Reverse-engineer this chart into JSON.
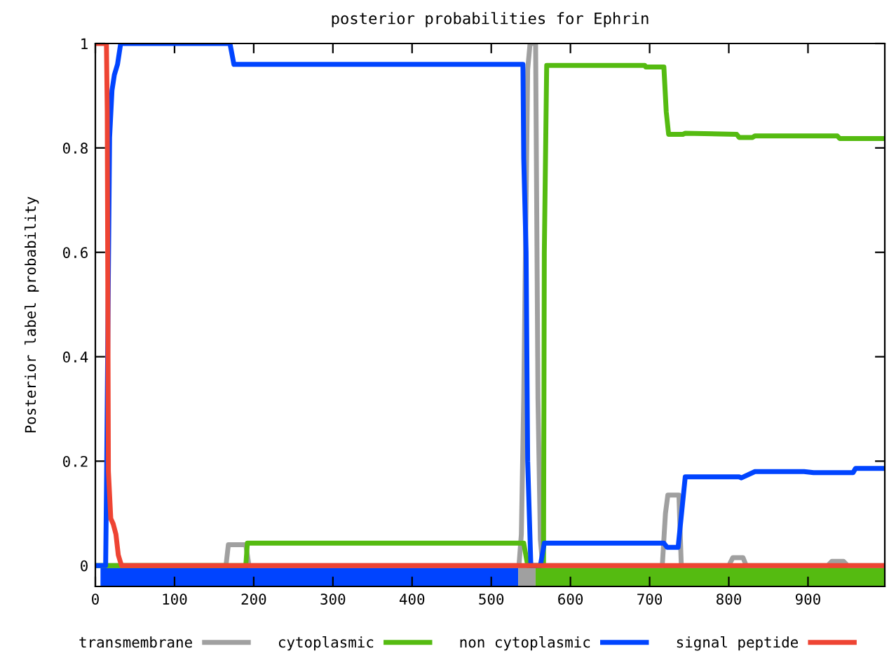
{
  "chart_data": {
    "type": "line",
    "title": "posterior probabilities for Ephrin",
    "ylabel": "Posterior label probability",
    "xlim": [
      0,
      997
    ],
    "xticks": [
      0,
      100,
      200,
      300,
      400,
      500,
      600,
      700,
      800,
      900
    ],
    "ylim": [
      -0.04,
      1
    ],
    "yticks": [
      0,
      0.2,
      0.4,
      0.6,
      0.8,
      1
    ],
    "grid": false,
    "legend": "bottom",
    "marker": "none",
    "line_style": "solid",
    "series": [
      {
        "name": "transmembrane",
        "color": "#a0a0a0",
        "x": [
          0,
          165,
          168,
          190,
          194,
          535,
          538,
          541,
          546,
          549,
          556,
          559,
          562,
          565,
          716,
          720,
          723,
          737,
          740,
          800,
          805,
          818,
          822,
          925,
          930,
          945,
          950,
          997
        ],
        "values": [
          0,
          0,
          0.04,
          0.04,
          0,
          0,
          0.06,
          0.32,
          0.95,
          1,
          1,
          0.32,
          0.05,
          0,
          0,
          0.1,
          0.135,
          0.135,
          0,
          0,
          0.015,
          0.015,
          0,
          0,
          0.008,
          0.008,
          0,
          0
        ]
      },
      {
        "name": "cytoplasmic",
        "color": "#55bb11",
        "x": [
          0,
          190,
          192,
          541,
          546,
          566,
          567,
          570,
          694,
          695,
          718,
          721,
          724,
          742,
          745,
          810,
          813,
          830,
          833,
          937,
          940,
          997
        ],
        "values": [
          0,
          0,
          0.043,
          0.043,
          0,
          0,
          0.6,
          0.958,
          0.958,
          0.955,
          0.955,
          0.869,
          0.826,
          0.826,
          0.828,
          0.826,
          0.82,
          0.82,
          0.823,
          0.823,
          0.818,
          0.818
        ]
      },
      {
        "name": "non cytoplasmic",
        "color": "#0044ff",
        "x": [
          0,
          13,
          14,
          18,
          21,
          24,
          28,
          32,
          170,
          175,
          540,
          541,
          544,
          546,
          550,
          562,
          567,
          718,
          722,
          736,
          745,
          813,
          816,
          833,
          895,
          907,
          957,
          960,
          997
        ],
        "values": [
          0,
          0,
          0.14,
          0.82,
          0.91,
          0.94,
          0.96,
          1,
          1,
          0.96,
          0.96,
          0.78,
          0.6,
          0.2,
          0,
          0,
          0.043,
          0.043,
          0.035,
          0.035,
          0.17,
          0.17,
          0.168,
          0.18,
          0.18,
          0.178,
          0.178,
          0.186,
          0.186
        ]
      },
      {
        "name": "signal peptide",
        "color": "#ee4433",
        "x": [
          0,
          14,
          15,
          16.5,
          19.5,
          22.5,
          26,
          29,
          33,
          997
        ],
        "values": [
          1,
          1,
          0.87,
          0.18,
          0.09,
          0.08,
          0.06,
          0.02,
          0,
          0
        ]
      },
      {
        "color": "#0044ff",
        "x": [
          6.5,
          534
        ],
        "values": [
          -0.02,
          -0.02
        ]
      },
      {
        "color": "#a0a0a0",
        "x": [
          534,
          556
        ],
        "values": [
          -0.02,
          -0.02
        ]
      },
      {
        "color": "#55bb11",
        "x": [
          556,
          997
        ],
        "values": [
          -0.02,
          -0.02
        ]
      }
    ]
  }
}
